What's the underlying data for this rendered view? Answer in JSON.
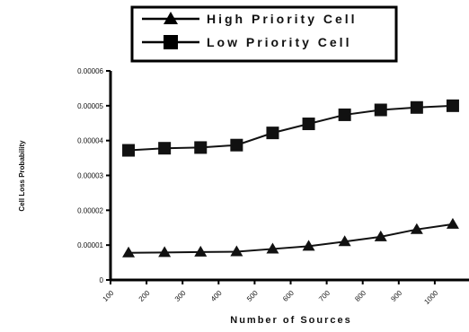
{
  "chart_data": {
    "type": "line",
    "title": "",
    "xlabel": "Number of Sources",
    "ylabel": "Cell Loss Probability",
    "x_tick_labels": [
      "100",
      "200",
      "300",
      "400",
      "500",
      "600",
      "700",
      "800",
      "900",
      "1000"
    ],
    "y_tick_labels": [
      "0",
      "0.00001",
      "0.00002",
      "0.00003",
      "0.00004",
      "0.00005",
      "0.00006"
    ],
    "ylim": [
      0,
      6e-05
    ],
    "grid": false,
    "legend_position": "top",
    "x": [
      150,
      250,
      350,
      450,
      550,
      650,
      750,
      850,
      950,
      1050
    ],
    "series": [
      {
        "name": "High Priority Cell",
        "marker": "triangle",
        "values": [
          7.8e-06,
          7.9e-06,
          8e-06,
          8.1e-06,
          8.9e-06,
          9.7e-06,
          1.1e-05,
          1.24e-05,
          1.45e-05,
          1.6e-05
        ]
      },
      {
        "name": "Low Priority Cell",
        "marker": "square",
        "values": [
          3.72e-05,
          3.78e-05,
          3.8e-05,
          3.87e-05,
          4.22e-05,
          4.48e-05,
          4.74e-05,
          4.88e-05,
          4.95e-05,
          5e-05
        ]
      }
    ],
    "colors": {
      "line": "#111111",
      "background": "#ffffff"
    }
  }
}
